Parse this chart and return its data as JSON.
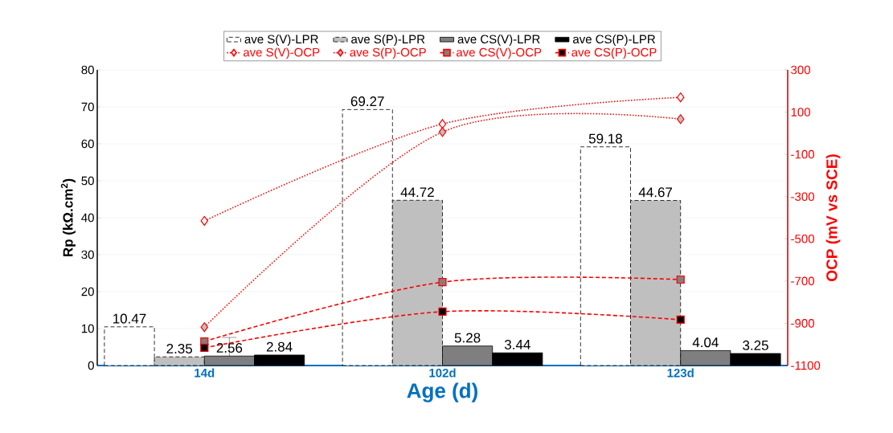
{
  "chart_data": {
    "type": "bar",
    "xlabel": "Age (d)",
    "ylabel": "Rp (kΩ.cm$^{2}$)",
    "y2label": "OCP (mV vs SCE)",
    "categories": [
      "14d",
      "102d",
      "123d"
    ],
    "ylim": [
      0,
      80
    ],
    "yticks": [
      0,
      10,
      20,
      30,
      40,
      50,
      60,
      70,
      80
    ],
    "y2lim": [
      -1100,
      300
    ],
    "y2ticks": [
      -1100,
      -900,
      -700,
      -500,
      -300,
      -100,
      100,
      300
    ],
    "grid": "y",
    "legend": "top",
    "series": [
      {
        "name": "ave S(V)-LPR",
        "color": "#ffffff",
        "line_style": "dashed",
        "data_labels": true,
        "values": [
          10.47,
          69.27,
          59.18
        ]
      },
      {
        "name": "ave S(P)-LPR",
        "color": "#bfbfbf",
        "line_style": "dashed",
        "data_labels": true,
        "values": [
          2.35,
          44.72,
          44.67
        ]
      },
      {
        "name": "ave CS(V)-LPR",
        "color": "#7f7f7f",
        "line_style": "solid",
        "data_labels": true,
        "values": [
          2.56,
          5.28,
          4.04
        ],
        "errors": [
          [
            2.56,
            7.6
          ],
          null,
          null
        ]
      },
      {
        "name": "ave CS(P)-LPR",
        "color": "#000000",
        "line_style": "solid",
        "data_labels": true,
        "values": [
          2.84,
          3.44,
          3.25
        ]
      },
      {
        "name": "ave S(V)-OCP",
        "type": "line",
        "axis": "y2",
        "color": "#ff0000",
        "colors": [
          "#ffffff",
          "#ffffff",
          "#ffffff"
        ],
        "marker": "diamond",
        "line_style": "dotted",
        "values": [
          -415,
          44,
          170
        ]
      },
      {
        "name": "ave S(P)-OCP",
        "type": "line",
        "axis": "y2",
        "color": "#ff0000",
        "colors": [
          "#bfbfbf",
          "#bfbfbf",
          "#bfbfbf"
        ],
        "marker": "diamond",
        "line_style": "dotted",
        "values": [
          -918,
          6,
          67
        ]
      },
      {
        "name": "ave CS(V)-OCP",
        "type": "line",
        "axis": "y2",
        "color": "#ff0000",
        "colors": [
          "#7f7f7f",
          "#7f7f7f",
          "#7f7f7f"
        ],
        "marker": "square",
        "line_style": "dashed",
        "values": [
          -986,
          -705,
          -693
        ]
      },
      {
        "name": "ave CS(P)-OCP",
        "type": "line",
        "axis": "y2",
        "color": "#ff0000",
        "colors": [
          "#000000",
          "#000000",
          "#000000"
        ],
        "marker": "square",
        "line_style": "dashed",
        "values": [
          -1016,
          -845,
          -883
        ]
      }
    ]
  }
}
